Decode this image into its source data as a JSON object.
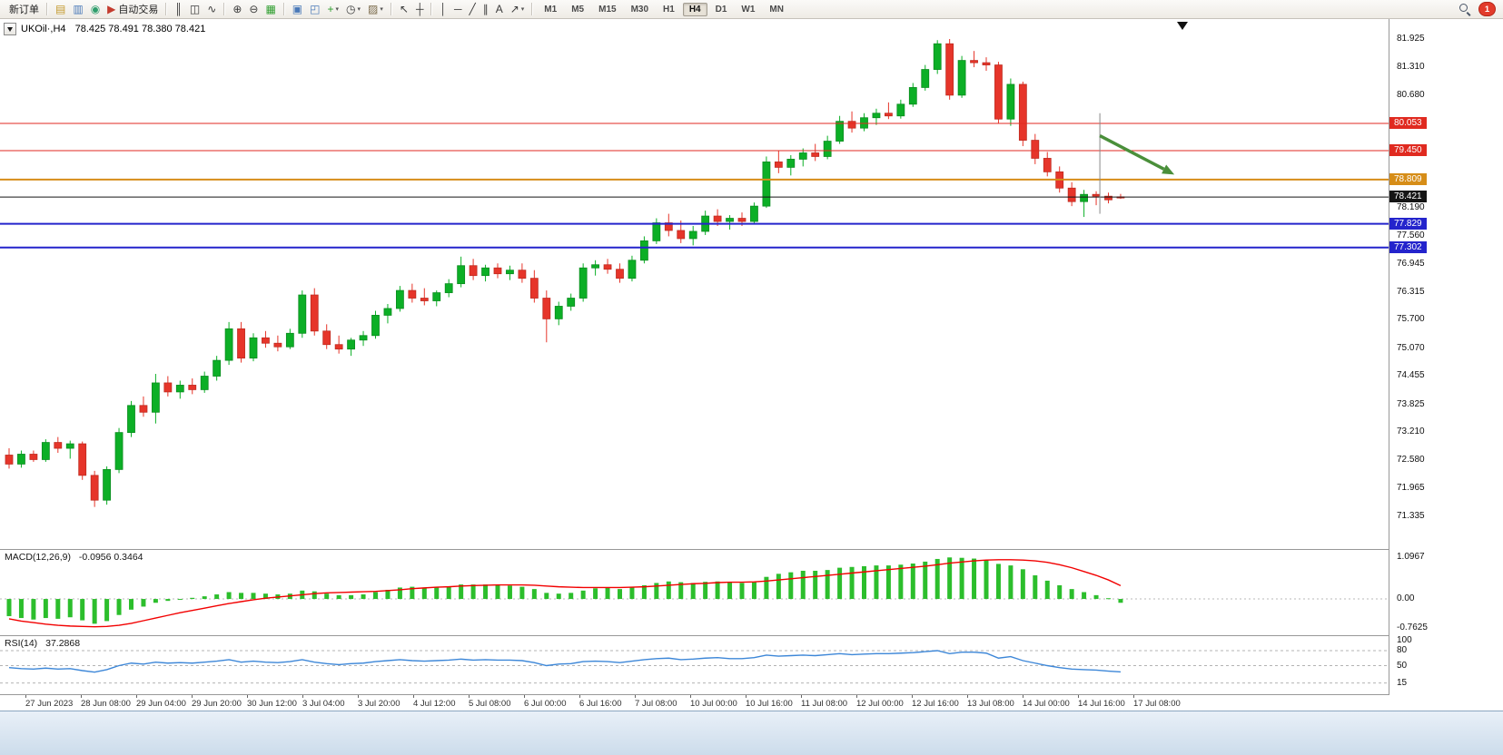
{
  "toolbar": {
    "groups": [
      {
        "items": [
          {
            "name": "new-order-button",
            "label": "新订单"
          }
        ]
      },
      {
        "items": [
          {
            "name": "market-watch-button",
            "glyph": "▤",
            "color": "#c59a2f"
          },
          {
            "name": "navigator-button",
            "glyph": "▥",
            "color": "#4a79b8"
          },
          {
            "name": "terminal-button",
            "glyph": "◉",
            "color": "#2f9e6c"
          },
          {
            "name": "auto-trading-button",
            "glyph": "▶",
            "color": "#c43b2e",
            "label": "自动交易"
          }
        ]
      },
      {
        "items": [
          {
            "name": "bar-chart-button",
            "glyph": "║"
          },
          {
            "name": "candlestick-chart-button",
            "glyph": "◫"
          },
          {
            "name": "line-chart-button",
            "glyph": "∿"
          }
        ]
      },
      {
        "items": [
          {
            "name": "zoom-in-button",
            "glyph": "⊕"
          },
          {
            "name": "zoom-out-button",
            "glyph": "⊖"
          },
          {
            "name": "tile-windows-button",
            "glyph": "▦",
            "color": "#2e9e2e"
          }
        ]
      },
      {
        "items": [
          {
            "name": "cascade-windows-button",
            "glyph": "▣",
            "color": "#4a79b8"
          },
          {
            "name": "arrange-windows-button",
            "glyph": "◰",
            "color": "#4a79b8"
          },
          {
            "name": "new-chart-button",
            "glyph": "+",
            "color": "#2e9e2e",
            "caret": true
          },
          {
            "name": "periods-button",
            "glyph": "◷",
            "caret": true
          },
          {
            "name": "templates-button",
            "glyph": "▨",
            "color": "#7a6a4a",
            "caret": true
          }
        ]
      },
      {
        "items": [
          {
            "name": "cursor-button",
            "glyph": "↖"
          },
          {
            "name": "crosshair-button",
            "glyph": "┼"
          }
        ]
      },
      {
        "items": [
          {
            "name": "vertical-line-button",
            "glyph": "│"
          },
          {
            "name": "horizontal-line-button",
            "glyph": "─"
          },
          {
            "name": "trendline-button",
            "glyph": "╱"
          },
          {
            "name": "equidistant-channel-button",
            "glyph": "∥"
          },
          {
            "name": "text-button",
            "glyph": "A"
          },
          {
            "name": "arrows-tool-button",
            "glyph": "↗",
            "caret": true
          }
        ]
      }
    ],
    "timeframes": [
      "M1",
      "M5",
      "M15",
      "M30",
      "H1",
      "H4",
      "D1",
      "W1",
      "MN"
    ],
    "active_timeframe": "H4",
    "notification_count": "1"
  },
  "chart": {
    "symbol_title": "UKOil·,H4",
    "ohlc_text": "78.425 78.491 78.380 78.421",
    "levels": [
      {
        "price": 80.053,
        "text": "80.053",
        "color": "#e02a20",
        "width": 1
      },
      {
        "price": 79.45,
        "text": "79.450",
        "color": "#e02a20",
        "width": 1
      },
      {
        "price": 78.809,
        "text": "78.809",
        "color": "#d68d18",
        "width": 2
      },
      {
        "price": 78.421,
        "text": "78.421",
        "color": "#151515",
        "width": 1
      },
      {
        "price": 77.829,
        "text": "77.829",
        "color": "#2424cc",
        "width": 2
      },
      {
        "price": 77.302,
        "text": "77.302",
        "color": "#2424cc",
        "width": 2
      }
    ],
    "axis_labels": [
      {
        "price": 81.925,
        "text": "81.925"
      },
      {
        "price": 81.31,
        "text": "81.310"
      },
      {
        "price": 80.68,
        "text": "80.680"
      },
      {
        "price": 78.19,
        "text": "78.190"
      },
      {
        "price": 77.56,
        "text": "77.560"
      },
      {
        "price": 76.945,
        "text": "76.945"
      },
      {
        "price": 76.315,
        "text": "76.315"
      },
      {
        "price": 75.7,
        "text": "75.700"
      },
      {
        "price": 75.07,
        "text": "75.070"
      },
      {
        "price": 74.455,
        "text": "74.455"
      },
      {
        "price": 73.825,
        "text": "73.825"
      },
      {
        "price": 73.21,
        "text": "73.210"
      },
      {
        "price": 72.58,
        "text": "72.580"
      },
      {
        "price": 71.965,
        "text": "71.965"
      },
      {
        "price": 71.335,
        "text": "71.335"
      }
    ]
  },
  "macd": {
    "label": "MACD(12,26,9)",
    "values_text": "-0.0956 0.3464",
    "axis": [
      {
        "v": 1.0967,
        "text": "1.0967"
      },
      {
        "v": 0,
        "text": "0.00"
      },
      {
        "v": -0.7625,
        "text": "-0.7625"
      }
    ]
  },
  "rsi": {
    "label": "RSI(14)",
    "value_text": "37.2868",
    "axis": [
      {
        "v": 100,
        "text": "100"
      },
      {
        "v": 80,
        "text": "80"
      },
      {
        "v": 50,
        "text": "50"
      },
      {
        "v": 15,
        "text": "15"
      }
    ],
    "levels": [
      80,
      50,
      15
    ]
  },
  "time_axis": [
    "27 Jun 2023",
    "28 Jun 08:00",
    "29 Jun 04:00",
    "29 Jun 20:00",
    "30 Jun 12:00",
    "3 Jul 04:00",
    "3 Jul 20:00",
    "4 Jul 12:00",
    "5 Jul 08:00",
    "6 Jul 00:00",
    "6 Jul 16:00",
    "7 Jul 08:00",
    "10 Jul 00:00",
    "10 Jul 16:00",
    "11 Jul 08:00",
    "12 Jul 00:00",
    "12 Jul 16:00",
    "13 Jul 08:00",
    "14 Jul 00:00",
    "14 Jul 16:00",
    "17 Jul 08:00"
  ],
  "annotations": {
    "trend_arrow": {
      "index_from": 89.3,
      "price_from": 79.78,
      "index_to": 95.4,
      "price_to": 78.92,
      "color": "#4a8f3a"
    },
    "vline": {
      "index": 89.3,
      "price_top": 80.28,
      "price_bottom": 78.05,
      "color": "#8a8a8a"
    }
  },
  "chart_data": {
    "type": "candlestick",
    "symbol": "UKOil",
    "timeframe": "H4",
    "price_range": [
      71.335,
      81.925
    ],
    "candles": [
      [
        72.7,
        72.85,
        72.4,
        72.5
      ],
      [
        72.5,
        72.8,
        72.42,
        72.72
      ],
      [
        72.72,
        72.8,
        72.55,
        72.6
      ],
      [
        72.6,
        73.05,
        72.55,
        72.98
      ],
      [
        72.98,
        73.1,
        72.75,
        72.85
      ],
      [
        72.85,
        73.02,
        72.62,
        72.95
      ],
      [
        72.95,
        73.0,
        72.15,
        72.25
      ],
      [
        72.25,
        72.35,
        71.55,
        71.7
      ],
      [
        71.7,
        72.45,
        71.6,
        72.38
      ],
      [
        72.38,
        73.3,
        72.3,
        73.2
      ],
      [
        73.2,
        73.9,
        73.1,
        73.8
      ],
      [
        73.8,
        74.0,
        73.55,
        73.65
      ],
      [
        73.65,
        74.5,
        73.4,
        74.3
      ],
      [
        74.3,
        74.45,
        74.0,
        74.1
      ],
      [
        74.1,
        74.35,
        73.95,
        74.25
      ],
      [
        74.25,
        74.4,
        74.05,
        74.15
      ],
      [
        74.15,
        74.55,
        74.08,
        74.45
      ],
      [
        74.45,
        74.9,
        74.35,
        74.8
      ],
      [
        74.8,
        75.65,
        74.7,
        75.5
      ],
      [
        75.5,
        75.65,
        74.75,
        74.85
      ],
      [
        74.85,
        75.4,
        74.78,
        75.3
      ],
      [
        75.3,
        75.45,
        75.08,
        75.18
      ],
      [
        75.18,
        75.35,
        75.0,
        75.1
      ],
      [
        75.1,
        75.5,
        75.05,
        75.4
      ],
      [
        75.4,
        76.35,
        75.3,
        76.25
      ],
      [
        76.25,
        76.4,
        75.35,
        75.45
      ],
      [
        75.45,
        75.6,
        75.05,
        75.15
      ],
      [
        75.15,
        75.35,
        74.95,
        75.05
      ],
      [
        75.05,
        75.3,
        74.9,
        75.25
      ],
      [
        75.25,
        75.45,
        75.12,
        75.35
      ],
      [
        75.35,
        75.9,
        75.28,
        75.8
      ],
      [
        75.8,
        76.05,
        75.62,
        75.95
      ],
      [
        75.95,
        76.45,
        75.88,
        76.35
      ],
      [
        76.35,
        76.5,
        76.08,
        76.18
      ],
      [
        76.18,
        76.4,
        76.02,
        76.12
      ],
      [
        76.12,
        76.35,
        76.0,
        76.3
      ],
      [
        76.3,
        76.6,
        76.2,
        76.5
      ],
      [
        76.5,
        77.1,
        76.42,
        76.9
      ],
      [
        76.9,
        77.05,
        76.58,
        76.68
      ],
      [
        76.68,
        76.92,
        76.55,
        76.85
      ],
      [
        76.85,
        76.95,
        76.62,
        76.72
      ],
      [
        76.72,
        76.9,
        76.58,
        76.8
      ],
      [
        76.8,
        76.95,
        76.52,
        76.62
      ],
      [
        76.62,
        76.8,
        76.08,
        76.18
      ],
      [
        76.18,
        76.35,
        75.2,
        75.72
      ],
      [
        75.72,
        76.1,
        75.58,
        76.0
      ],
      [
        76.0,
        76.28,
        75.9,
        76.18
      ],
      [
        76.18,
        76.95,
        76.1,
        76.85
      ],
      [
        76.85,
        77.02,
        76.68,
        76.92
      ],
      [
        76.92,
        77.05,
        76.72,
        76.82
      ],
      [
        76.82,
        76.95,
        76.52,
        76.62
      ],
      [
        76.62,
        77.12,
        76.55,
        77.02
      ],
      [
        77.02,
        77.55,
        76.95,
        77.45
      ],
      [
        77.45,
        77.95,
        77.38,
        77.85
      ],
      [
        77.85,
        78.05,
        77.55,
        77.68
      ],
      [
        77.68,
        77.9,
        77.4,
        77.5
      ],
      [
        77.5,
        77.78,
        77.35,
        77.66
      ],
      [
        77.66,
        78.12,
        77.58,
        78.0
      ],
      [
        78.0,
        78.15,
        77.78,
        77.88
      ],
      [
        77.88,
        78.02,
        77.7,
        77.95
      ],
      [
        77.95,
        78.08,
        77.78,
        77.88
      ],
      [
        77.88,
        78.3,
        77.82,
        78.22
      ],
      [
        78.22,
        79.32,
        78.18,
        79.2
      ],
      [
        79.2,
        79.45,
        78.95,
        79.08
      ],
      [
        79.08,
        79.35,
        78.9,
        79.26
      ],
      [
        79.26,
        79.5,
        79.1,
        79.4
      ],
      [
        79.4,
        79.6,
        79.22,
        79.32
      ],
      [
        79.32,
        79.78,
        79.26,
        79.66
      ],
      [
        79.66,
        80.22,
        79.6,
        80.1
      ],
      [
        80.1,
        80.32,
        79.85,
        79.95
      ],
      [
        79.95,
        80.28,
        79.88,
        80.18
      ],
      [
        80.18,
        80.38,
        80.02,
        80.28
      ],
      [
        80.28,
        80.52,
        80.15,
        80.22
      ],
      [
        80.22,
        80.58,
        80.16,
        80.48
      ],
      [
        80.48,
        80.95,
        80.42,
        80.85
      ],
      [
        80.85,
        81.35,
        80.78,
        81.25
      ],
      [
        81.25,
        81.9,
        81.15,
        81.82
      ],
      [
        81.82,
        81.925,
        80.58,
        80.68
      ],
      [
        80.68,
        81.55,
        80.62,
        81.45
      ],
      [
        81.45,
        81.66,
        81.3,
        81.4
      ],
      [
        81.4,
        81.52,
        81.22,
        81.35
      ],
      [
        81.35,
        81.42,
        80.05,
        80.15
      ],
      [
        80.15,
        81.05,
        80.0,
        80.92
      ],
      [
        80.92,
        80.98,
        79.55,
        79.68
      ],
      [
        79.68,
        79.82,
        79.15,
        79.28
      ],
      [
        79.28,
        79.42,
        78.88,
        78.98
      ],
      [
        78.98,
        79.1,
        78.52,
        78.62
      ],
      [
        78.62,
        78.75,
        78.22,
        78.32
      ],
      [
        78.32,
        78.58,
        77.98,
        78.48
      ],
      [
        78.48,
        78.55,
        78.24,
        78.44
      ],
      [
        78.44,
        78.52,
        78.28,
        78.36
      ],
      [
        78.425,
        78.491,
        78.38,
        78.421
      ]
    ],
    "macd_histogram": [
      -0.45,
      -0.5,
      -0.54,
      -0.5,
      -0.52,
      -0.48,
      -0.56,
      -0.65,
      -0.58,
      -0.42,
      -0.28,
      -0.2,
      -0.1,
      -0.05,
      0.0,
      0.03,
      0.07,
      0.12,
      0.18,
      0.16,
      0.16,
      0.14,
      0.12,
      0.14,
      0.22,
      0.2,
      0.14,
      0.1,
      0.1,
      0.12,
      0.18,
      0.24,
      0.3,
      0.32,
      0.3,
      0.3,
      0.33,
      0.38,
      0.38,
      0.38,
      0.36,
      0.35,
      0.32,
      0.26,
      0.16,
      0.14,
      0.16,
      0.22,
      0.28,
      0.3,
      0.26,
      0.3,
      0.36,
      0.42,
      0.46,
      0.44,
      0.42,
      0.45,
      0.46,
      0.44,
      0.42,
      0.44,
      0.58,
      0.66,
      0.7,
      0.74,
      0.74,
      0.76,
      0.82,
      0.84,
      0.86,
      0.88,
      0.88,
      0.9,
      0.93,
      0.98,
      1.05,
      1.09,
      1.08,
      1.06,
      1.02,
      0.92,
      0.88,
      0.78,
      0.62,
      0.48,
      0.36,
      0.26,
      0.18,
      0.1,
      0.02,
      -0.1
    ],
    "macd_signal": [
      -0.52,
      -0.58,
      -0.62,
      -0.66,
      -0.69,
      -0.71,
      -0.72,
      -0.73,
      -0.72,
      -0.69,
      -0.64,
      -0.57,
      -0.5,
      -0.43,
      -0.36,
      -0.3,
      -0.24,
      -0.18,
      -0.12,
      -0.07,
      -0.02,
      0.02,
      0.05,
      0.08,
      0.11,
      0.14,
      0.16,
      0.17,
      0.18,
      0.19,
      0.2,
      0.22,
      0.24,
      0.27,
      0.29,
      0.31,
      0.32,
      0.34,
      0.35,
      0.36,
      0.37,
      0.37,
      0.37,
      0.36,
      0.34,
      0.32,
      0.31,
      0.3,
      0.3,
      0.3,
      0.3,
      0.31,
      0.32,
      0.34,
      0.36,
      0.38,
      0.4,
      0.41,
      0.43,
      0.44,
      0.44,
      0.45,
      0.47,
      0.5,
      0.53,
      0.56,
      0.59,
      0.62,
      0.65,
      0.68,
      0.71,
      0.74,
      0.77,
      0.8,
      0.83,
      0.86,
      0.9,
      0.94,
      0.97,
      1.0,
      1.02,
      1.03,
      1.03,
      1.02,
      1.0,
      0.96,
      0.9,
      0.82,
      0.72,
      0.62,
      0.5,
      0.35
    ],
    "rsi": [
      46,
      44,
      43,
      45,
      43,
      44,
      40,
      37,
      42,
      50,
      55,
      53,
      57,
      55,
      56,
      55,
      57,
      59,
      62,
      57,
      59,
      57,
      56,
      58,
      62,
      57,
      54,
      52,
      54,
      55,
      58,
      60,
      62,
      60,
      59,
      60,
      61,
      63,
      61,
      62,
      61,
      61,
      60,
      56,
      50,
      53,
      54,
      58,
      59,
      58,
      56,
      59,
      62,
      64,
      65,
      62,
      63,
      65,
      66,
      64,
      64,
      66,
      71,
      69,
      70,
      71,
      70,
      72,
      74,
      72,
      73,
      74,
      74,
      75,
      76,
      78,
      80,
      74,
      77,
      77,
      75,
      65,
      68,
      60,
      55,
      50,
      46,
      43,
      42,
      41,
      39,
      37.3
    ]
  }
}
